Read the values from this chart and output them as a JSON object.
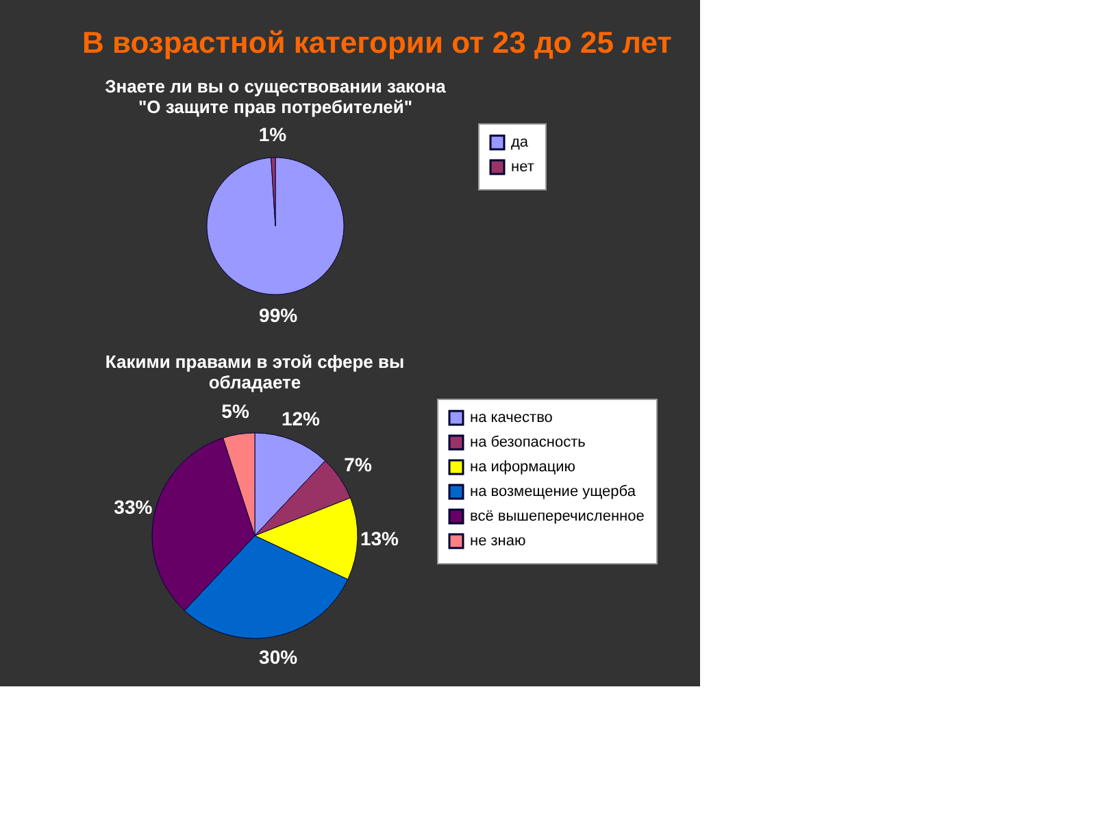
{
  "chart_data": [
    {
      "type": "pie",
      "title": [
        "Знаете ли вы о существовании закона",
        "\"О защите прав потребителей\""
      ],
      "annotations": [
        "В возрастной категории от 23 до 25 лет"
      ],
      "categories": [
        "да",
        "нет"
      ],
      "values": [
        99,
        1
      ],
      "colors": [
        "#9999ff",
        "#993366"
      ],
      "value_labels": [
        "99%",
        "1%"
      ],
      "legend": "right"
    },
    {
      "type": "pie",
      "title": [
        "Какими правами в этой сфере вы",
        "обладаете"
      ],
      "categories": [
        "на качество",
        "на безопасность",
        "на иформацию",
        "на возмещение ущерба",
        "всё вышеперечисленное",
        "не знаю"
      ],
      "values": [
        12,
        7,
        13,
        30,
        33,
        5
      ],
      "colors": [
        "#9999ff",
        "#993366",
        "#ffff00",
        "#0066cc",
        "#660066",
        "#ff8080"
      ],
      "value_labels": [
        "12%",
        "7%",
        "13%",
        "30%",
        "33%",
        "5%"
      ],
      "legend": "right"
    }
  ]
}
